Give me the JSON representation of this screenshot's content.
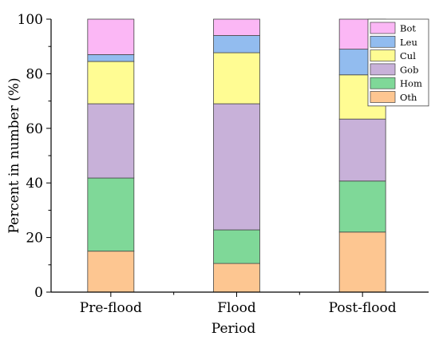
{
  "chart_data": {
    "type": "bar",
    "stacked": true,
    "categories": [
      "Pre-flood",
      "Flood",
      "Post-flood"
    ],
    "xlabel": "Period",
    "ylabel": "Percent in number (%)",
    "ylim": [
      0,
      100
    ],
    "yticks": [
      0,
      20,
      40,
      60,
      80,
      100
    ],
    "legend_position": "top-right",
    "grid": false,
    "series": [
      {
        "name": "Oth",
        "color": "#FDC691",
        "values": [
          15.0,
          10.5,
          22.0
        ]
      },
      {
        "name": "Hom",
        "color": "#7FD898",
        "values": [
          26.8,
          12.3,
          18.7
        ]
      },
      {
        "name": "Gob",
        "color": "#C8B1D9",
        "values": [
          27.2,
          46.2,
          22.7
        ]
      },
      {
        "name": "Cul",
        "color": "#FFFC93",
        "values": [
          15.5,
          18.7,
          16.2
        ]
      },
      {
        "name": "Leu",
        "color": "#92BCEF",
        "values": [
          2.5,
          6.3,
          9.4
        ]
      },
      {
        "name": "Bot",
        "color": "#FBB7F5",
        "values": [
          13.0,
          6.0,
          11.0
        ]
      }
    ]
  }
}
